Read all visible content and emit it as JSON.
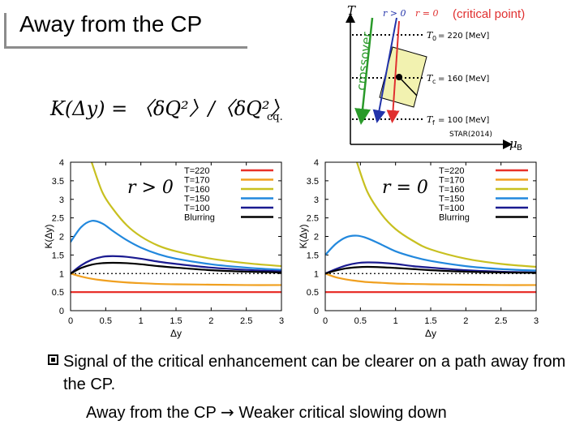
{
  "slide": {
    "title": "Away from the CP",
    "bullet": "Signal of the critical enhancement can be clearer on a path away from the CP.",
    "conclusion_left": "Away from the CP",
    "conclusion_arrow": "→",
    "conclusion_right": "Weaker critical slowing down"
  },
  "formula": {
    "text": "K(Δy) = 〈δQ²〉/〈δQ²〉",
    "subscript": "cq."
  },
  "phase": {
    "t_axis": "T",
    "mu_axis": "μ",
    "mu_sub": "B",
    "crossover_label": "crossover",
    "r_pos": "r > 0",
    "r_zero": "r = 0",
    "cp_note": "(critical point)",
    "t0": "T",
    "t0_sub": "0",
    "t0_val": "= 220 [MeV]",
    "tc": "T",
    "tc_sub": "c",
    "tc_val": "= 160 [MeV]",
    "tf": "T",
    "tf_sub": "f",
    "tf_val": "= 100 [MeV]",
    "star": "STAR(2014)",
    "colors": {
      "crossover": "#2a9a2a",
      "r_pos": "#2233aa",
      "r_zero": "#e03030",
      "box": "#f2f2b0"
    }
  },
  "chart_data": [
    {
      "type": "line",
      "title": "r > 0",
      "xlabel": "Δy",
      "ylabel": "K(Δy)",
      "xlim": [
        0,
        3
      ],
      "ylim": [
        0,
        4
      ],
      "x_ticks": [
        "0",
        "0.5",
        "1",
        "1.5",
        "2",
        "2.5",
        "3"
      ],
      "y_ticks": [
        "0",
        "0.5",
        "1",
        "1.5",
        "2",
        "2.5",
        "3",
        "3.5",
        "4"
      ],
      "reference_line": 1,
      "legend_position": "top-right",
      "x": [
        0,
        0.15,
        0.3,
        0.45,
        0.6,
        0.8,
        1.0,
        1.25,
        1.5,
        2.0,
        2.5,
        3.0
      ],
      "series": [
        {
          "name": "T=220",
          "color": "#e8302a",
          "values": [
            0.5,
            0.5,
            0.5,
            0.5,
            0.5,
            0.5,
            0.5,
            0.5,
            0.5,
            0.5,
            0.5,
            0.5
          ]
        },
        {
          "name": "T=170",
          "color": "#f0a020",
          "values": [
            1.0,
            0.92,
            0.86,
            0.82,
            0.79,
            0.76,
            0.74,
            0.72,
            0.71,
            0.7,
            0.69,
            0.69
          ]
        },
        {
          "name": "T=160",
          "color": "#c8c020",
          "values": [
            null,
            null,
            4.0,
            3.2,
            2.75,
            2.3,
            2.0,
            1.75,
            1.6,
            1.4,
            1.28,
            1.2
          ]
        },
        {
          "name": "T=150",
          "color": "#2288dd",
          "values": [
            1.85,
            2.25,
            2.42,
            2.35,
            2.15,
            1.9,
            1.7,
            1.52,
            1.4,
            1.25,
            1.16,
            1.1
          ]
        },
        {
          "name": "T=100",
          "color": "#1a1a90",
          "values": [
            1.0,
            1.22,
            1.37,
            1.45,
            1.47,
            1.45,
            1.4,
            1.32,
            1.26,
            1.16,
            1.1,
            1.06
          ]
        },
        {
          "name": "Blurring",
          "color": "#000000",
          "values": [
            1.0,
            1.15,
            1.24,
            1.28,
            1.29,
            1.28,
            1.25,
            1.2,
            1.16,
            1.09,
            1.05,
            1.03
          ]
        }
      ]
    },
    {
      "type": "line",
      "title": "r = 0",
      "xlabel": "Δy",
      "ylabel": "K(Δy)",
      "xlim": [
        0,
        3
      ],
      "ylim": [
        0,
        4
      ],
      "x_ticks": [
        "0",
        "0.5",
        "1",
        "1.5",
        "2",
        "2.5",
        "3"
      ],
      "y_ticks": [
        "0",
        "0.5",
        "1",
        "1.5",
        "2",
        "2.5",
        "3",
        "3.5",
        "4"
      ],
      "reference_line": 1,
      "legend_position": "top-right",
      "x": [
        0,
        0.15,
        0.3,
        0.45,
        0.6,
        0.8,
        1.0,
        1.25,
        1.5,
        2.0,
        2.5,
        3.0
      ],
      "series": [
        {
          "name": "T=220",
          "color": "#e8302a",
          "values": [
            0.5,
            0.5,
            0.5,
            0.5,
            0.5,
            0.5,
            0.5,
            0.5,
            0.5,
            0.5,
            0.5,
            0.5
          ]
        },
        {
          "name": "T=170",
          "color": "#f0a020",
          "values": [
            1.0,
            0.9,
            0.84,
            0.8,
            0.77,
            0.75,
            0.73,
            0.72,
            0.71,
            0.7,
            0.69,
            0.69
          ]
        },
        {
          "name": "T=160",
          "color": "#c8c020",
          "values": [
            null,
            null,
            null,
            4.0,
            3.2,
            2.6,
            2.2,
            1.88,
            1.65,
            1.4,
            1.26,
            1.18
          ]
        },
        {
          "name": "T=150",
          "color": "#2288dd",
          "values": [
            1.5,
            1.8,
            1.98,
            2.02,
            1.95,
            1.78,
            1.6,
            1.45,
            1.34,
            1.2,
            1.12,
            1.08
          ]
        },
        {
          "name": "T=100",
          "color": "#1a1a90",
          "values": [
            1.0,
            1.12,
            1.22,
            1.28,
            1.3,
            1.29,
            1.26,
            1.2,
            1.16,
            1.09,
            1.05,
            1.03
          ]
        },
        {
          "name": "Blurring",
          "color": "#000000",
          "values": [
            1.0,
            1.08,
            1.14,
            1.17,
            1.18,
            1.17,
            1.15,
            1.12,
            1.09,
            1.05,
            1.03,
            1.02
          ]
        }
      ]
    }
  ]
}
